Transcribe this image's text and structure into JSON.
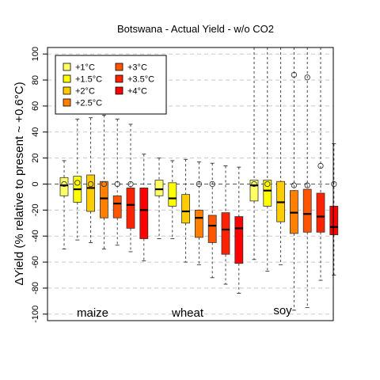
{
  "chart_data": {
    "type": "box",
    "title": "Botswana - Actual Yield - w/o CO2",
    "ylabel": "ΔYield (% relative to present ~ +0.6°C)",
    "ylim": [
      -105,
      105
    ],
    "yticks": [
      -100,
      -80,
      -60,
      -40,
      -20,
      0,
      20,
      40,
      60,
      80,
      100
    ],
    "grid": true,
    "legend_position": "top-left",
    "legend": [
      {
        "label": "+1°C",
        "color": "#FFFF66"
      },
      {
        "label": "+1.5°C",
        "color": "#FFFF00"
      },
      {
        "label": "+2°C",
        "color": "#FFCC00"
      },
      {
        "label": "+2.5°C",
        "color": "#FF8000"
      },
      {
        "label": "+3°C",
        "color": "#FF5500"
      },
      {
        "label": "+3.5°C",
        "color": "#FF2200"
      },
      {
        "label": "+4°C",
        "color": "#FF0000"
      }
    ],
    "groups": [
      {
        "name": "maize",
        "boxes": [
          {
            "level": "+1°C",
            "whisker_low": -50,
            "q1": -9,
            "median": -1,
            "q3": 5,
            "whisker_high": 18,
            "mean": 0
          },
          {
            "level": "+1.5°C",
            "whisker_low": -43,
            "q1": -14,
            "median": -4,
            "q3": 6,
            "whisker_high": 50,
            "mean": 1
          },
          {
            "level": "+2°C",
            "whisker_low": -45,
            "q1": -21,
            "median": -3,
            "q3": 7,
            "whisker_high": 51,
            "mean": 0
          },
          {
            "level": "+2.5°C",
            "whisker_low": -50,
            "q1": -26,
            "median": -11,
            "q3": 2,
            "whisker_high": 53,
            "mean": 0
          },
          {
            "level": "+3°C",
            "whisker_low": -47,
            "q1": -26,
            "median": -15,
            "q3": -9,
            "whisker_high": 50,
            "mean": 0
          },
          {
            "level": "+3.5°C",
            "whisker_low": -52,
            "q1": -34,
            "median": -16,
            "q3": -3,
            "whisker_high": 46,
            "mean": 0
          },
          {
            "level": "+4°C",
            "whisker_low": -59,
            "q1": -42,
            "median": -20,
            "q3": -3,
            "whisker_high": 23,
            "mean": null
          }
        ]
      },
      {
        "name": "wheat",
        "boxes": [
          {
            "level": "+1°C",
            "whisker_low": -42,
            "q1": -9,
            "median": -4,
            "q3": 3,
            "whisker_high": 20,
            "mean": null
          },
          {
            "level": "+1.5°C",
            "whisker_low": -42,
            "q1": -17,
            "median": -11,
            "q3": 1,
            "whisker_high": 18,
            "mean": null
          },
          {
            "level": "+2°C",
            "whisker_low": -60,
            "q1": -30,
            "median": -21,
            "q3": -8,
            "whisker_high": 19,
            "mean": null
          },
          {
            "level": "+2.5°C",
            "whisker_low": -62,
            "q1": -41,
            "median": -26,
            "q3": -20,
            "whisker_high": 17,
            "mean": 0
          },
          {
            "level": "+3°C",
            "whisker_low": -72,
            "q1": -45,
            "median": -32,
            "q3": -24,
            "whisker_high": 16,
            "mean": 0
          },
          {
            "level": "+3.5°C",
            "whisker_low": -77,
            "q1": -54,
            "median": -35,
            "q3": -22,
            "whisker_high": 14,
            "mean": null
          },
          {
            "level": "+4°C",
            "whisker_low": -84,
            "q1": -61,
            "median": -34,
            "q3": -25,
            "whisker_high": 13,
            "mean": null
          }
        ]
      },
      {
        "name": "soy",
        "boxes": [
          {
            "level": "+1°C",
            "whisker_low": -58,
            "q1": -13,
            "median": -1,
            "q3": 3,
            "whisker_high": 106,
            "mean": 0
          },
          {
            "level": "+1.5°C",
            "whisker_low": -67,
            "q1": -17,
            "median": -5,
            "q3": 3,
            "whisker_high": 106,
            "mean": 0
          },
          {
            "level": "+2°C",
            "whisker_low": -62,
            "q1": -29,
            "median": -14,
            "q3": 2,
            "whisker_high": 106,
            "mean": null
          },
          {
            "level": "+2.5°C",
            "whisker_low": -97,
            "q1": -38,
            "median": -22,
            "q3": -5,
            "whisker_high": 106,
            "mean": -1,
            "outliers": [
              84
            ]
          },
          {
            "level": "+3°C",
            "whisker_low": -95,
            "q1": -37,
            "median": -23,
            "q3": -4,
            "whisker_high": 106,
            "mean": -1,
            "outliers": [
              82
            ]
          },
          {
            "level": "+3.5°C",
            "whisker_low": -74,
            "q1": -37,
            "median": -25,
            "q3": -7,
            "whisker_high": 106,
            "mean": 14
          },
          {
            "level": "+4°C",
            "whisker_low": -70,
            "q1": -39,
            "median": -33,
            "q3": -17,
            "whisker_high": 31,
            "mean": 0
          }
        ]
      }
    ]
  }
}
